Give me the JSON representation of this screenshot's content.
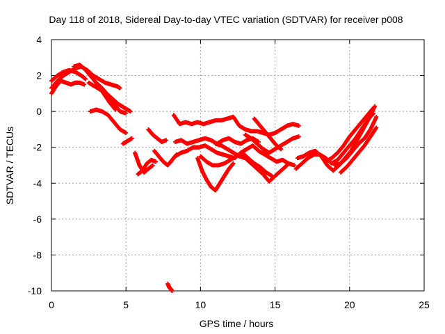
{
  "chart_data": {
    "type": "scatter",
    "title": "Day 118 of 2018, Sidereal Day-to-day VTEC variation (SDTVAR) for receiver p008",
    "xlabel": "GPS time / hours",
    "ylabel": "SDTVAR / TECUs",
    "xlim": [
      0,
      25
    ],
    "ylim": [
      -10,
      4
    ],
    "xticks": [
      0,
      5,
      10,
      15,
      20,
      25
    ],
    "yticks": [
      -10,
      -8,
      -6,
      -4,
      -2,
      0,
      2,
      4
    ],
    "xtick_labels": [
      "0",
      "5",
      "10",
      "15",
      "20",
      "25"
    ],
    "ytick_labels": [
      "-10",
      "-8",
      "-6",
      "-4",
      "-2",
      "0",
      "2",
      "4"
    ],
    "grid": true,
    "marker": "+",
    "color": "#ff0000",
    "series": [
      {
        "x": [
          0.0,
          0.4,
          0.8,
          1.2,
          1.6,
          2.0,
          2.4,
          2.8,
          3.2,
          3.6,
          4.0,
          4.4,
          4.6
        ],
        "y": [
          1.3,
          1.7,
          2.0,
          2.2,
          2.4,
          2.5,
          2.3,
          2.0,
          1.8,
          1.6,
          1.5,
          1.4,
          1.3
        ]
      },
      {
        "x": [
          0.0,
          0.3,
          0.6,
          1.0,
          1.3,
          1.6,
          1.9,
          2.2
        ],
        "y": [
          1.0,
          1.4,
          1.7,
          1.6,
          1.5,
          1.6,
          1.6,
          1.5
        ]
      },
      {
        "x": [
          0.0,
          0.4,
          0.8,
          1.2,
          1.6,
          2.0,
          2.3
        ],
        "y": [
          1.7,
          2.0,
          2.2,
          2.3,
          2.2,
          2.0,
          1.8
        ]
      },
      {
        "x": [
          1.5,
          1.9,
          2.3,
          2.7,
          3.1,
          3.5,
          3.9,
          4.3
        ],
        "y": [
          2.5,
          2.6,
          2.3,
          1.9,
          1.5,
          1.0,
          0.5,
          0.1
        ]
      },
      {
        "x": [
          2.5,
          2.9,
          3.3,
          3.7,
          4.1,
          4.5,
          4.9,
          5.3
        ],
        "y": [
          1.6,
          1.4,
          1.2,
          1.0,
          0.7,
          0.4,
          0.2,
          0.0
        ]
      },
      {
        "x": [
          2.6,
          3.0,
          3.4,
          3.8,
          4.2,
          4.6,
          5.0
        ],
        "y": [
          0.0,
          0.1,
          0.0,
          -0.2,
          -0.6,
          -1.0,
          -1.2
        ]
      },
      {
        "x": [
          3.0,
          3.4,
          3.8,
          4.2,
          4.6,
          5.0
        ],
        "y": [
          1.6,
          1.3,
          0.9,
          0.4,
          0.0,
          -0.1
        ]
      },
      {
        "x": [
          4.8,
          5.0,
          5.2,
          5.4
        ],
        "y": [
          -1.8,
          -1.7,
          -1.6,
          -1.5
        ]
      },
      {
        "x": [
          5.6,
          5.9,
          6.2,
          6.5,
          6.8
        ],
        "y": [
          -2.3,
          -3.0,
          -3.4,
          -3.2,
          -3.0
        ]
      },
      {
        "x": [
          5.8,
          6.1,
          6.4,
          6.7,
          7.0
        ],
        "y": [
          -3.5,
          -3.3,
          -2.9,
          -2.7,
          -2.8
        ]
      },
      {
        "x": [
          6.5,
          6.8,
          7.1,
          7.4,
          7.7
        ],
        "y": [
          -1.0,
          -1.3,
          -1.5,
          -1.7,
          -1.6
        ]
      },
      {
        "x": [
          6.9,
          7.2,
          7.5,
          7.8,
          8.1,
          8.4
        ],
        "y": [
          -2.2,
          -2.5,
          -2.8,
          -3.0,
          -2.7,
          -2.4
        ]
      },
      {
        "x": [
          7.8,
          7.9,
          8.0,
          8.1
        ],
        "y": [
          -9.6,
          -9.8,
          -9.9,
          -10.0
        ]
      },
      {
        "x": [
          8.2,
          8.6,
          9.0,
          9.4,
          9.8,
          10.2,
          10.6,
          11.0,
          11.4,
          11.8,
          12.2,
          12.6,
          13.0,
          13.4,
          13.8,
          14.2,
          14.6,
          15.0,
          15.4,
          15.8,
          16.2,
          16.6
        ],
        "y": [
          -0.2,
          -0.7,
          -0.6,
          -0.7,
          -0.6,
          -0.7,
          -0.6,
          -0.5,
          -0.5,
          -0.4,
          -0.3,
          -0.8,
          -1.0,
          -1.1,
          -1.1,
          -1.2,
          -1.3,
          -1.2,
          -1.0,
          -0.8,
          -0.7,
          -0.8
        ]
      },
      {
        "x": [
          8.3,
          8.7,
          9.1,
          9.5,
          9.9,
          10.3,
          10.7,
          11.1,
          11.5,
          11.9,
          12.3,
          12.7,
          13.1,
          13.5,
          13.9,
          14.3,
          14.7,
          15.1,
          15.5,
          15.9,
          16.3
        ],
        "y": [
          -2.5,
          -2.3,
          -2.2,
          -2.0,
          -2.0,
          -1.9,
          -2.1,
          -2.3,
          -2.4,
          -2.5,
          -2.6,
          -2.3,
          -2.1,
          -1.9,
          -2.2,
          -2.4,
          -2.6,
          -2.8,
          -2.7,
          -2.9,
          -3.0
        ]
      },
      {
        "x": [
          8.3,
          8.7,
          9.1,
          9.5,
          9.9,
          10.3,
          10.7,
          11.1,
          11.5,
          11.9,
          12.3,
          12.7,
          13.1,
          13.5,
          13.9
        ],
        "y": [
          -1.7,
          -1.6,
          -1.8,
          -1.7,
          -1.6,
          -1.5,
          -1.6,
          -1.8,
          -1.6,
          -1.5,
          -1.7,
          -1.8,
          -1.6,
          -1.5,
          -1.7
        ]
      },
      {
        "x": [
          9.8,
          10.1,
          10.4,
          10.7,
          11.0,
          11.3,
          11.6,
          11.9,
          12.2
        ],
        "y": [
          -2.6,
          -3.3,
          -3.8,
          -4.2,
          -4.4,
          -4.0,
          -3.6,
          -3.2,
          -2.9
        ]
      },
      {
        "x": [
          10.0,
          10.4,
          10.8,
          11.2,
          11.6,
          12.0,
          12.4,
          12.8,
          13.2,
          13.6,
          14.0,
          14.4,
          14.8
        ],
        "y": [
          -2.5,
          -2.8,
          -3.0,
          -3.0,
          -2.9,
          -2.7,
          -2.5,
          -2.3,
          -2.6,
          -2.9,
          -3.1,
          -3.4,
          -3.6
        ]
      },
      {
        "x": [
          11.0,
          11.4,
          11.8,
          12.2,
          12.6,
          13.0,
          13.4,
          13.8,
          14.2,
          14.6,
          15.0,
          15.4,
          15.8
        ],
        "y": [
          -1.8,
          -1.9,
          -2.1,
          -2.3,
          -2.5,
          -2.6,
          -2.9,
          -3.2,
          -3.5,
          -3.9,
          -3.6,
          -3.3,
          -3.0
        ]
      },
      {
        "x": [
          13.0,
          13.4,
          13.8,
          14.2,
          14.6,
          15.0,
          15.4,
          15.8,
          16.2,
          16.6
        ],
        "y": [
          -1.3,
          -1.5,
          -1.8,
          -2.1,
          -2.3,
          -2.1,
          -1.9,
          -1.7,
          -1.5,
          -1.4
        ]
      },
      {
        "x": [
          13.6,
          13.9,
          14.2,
          14.5,
          14.8,
          15.1,
          15.4
        ],
        "y": [
          -0.4,
          -0.7,
          -1.0,
          -1.3,
          -1.6,
          -1.9,
          -2.1
        ]
      },
      {
        "x": [
          16.4,
          16.8,
          17.2,
          17.6,
          18.0,
          18.4,
          18.8,
          19.2,
          19.6,
          20.0,
          20.4,
          20.8,
          21.2,
          21.6
        ],
        "y": [
          -3.2,
          -2.9,
          -2.6,
          -2.4,
          -2.4,
          -2.6,
          -2.9,
          -2.7,
          -2.3,
          -1.9,
          -1.5,
          -1.0,
          -0.5,
          -0.1
        ]
      },
      {
        "x": [
          16.5,
          16.9,
          17.3,
          17.7,
          18.1,
          18.5,
          18.9,
          19.3,
          19.7,
          20.1,
          20.5,
          20.9,
          21.3,
          21.7
        ],
        "y": [
          -2.6,
          -2.5,
          -2.3,
          -2.2,
          -2.5,
          -3.0,
          -3.3,
          -3.0,
          -2.6,
          -2.2,
          -1.6,
          -1.0,
          -0.4,
          0.3
        ]
      },
      {
        "x": [
          18.4,
          18.8,
          19.2,
          19.6,
          20.0,
          20.4,
          20.8,
          21.2,
          21.6
        ],
        "y": [
          -2.8,
          -2.6,
          -2.3,
          -1.9,
          -1.4,
          -1.0,
          -0.6,
          -0.2,
          0.2
        ]
      },
      {
        "x": [
          19.4,
          19.8,
          20.2,
          20.6,
          21.0,
          21.4,
          21.8
        ],
        "y": [
          -3.4,
          -3.1,
          -2.7,
          -2.3,
          -1.9,
          -1.4,
          -0.9
        ]
      },
      {
        "x": [
          19.0,
          19.4,
          19.8,
          20.2,
          20.6,
          21.0,
          21.4,
          21.8
        ],
        "y": [
          -3.0,
          -2.9,
          -2.6,
          -2.2,
          -1.8,
          -1.5,
          -1.0,
          -0.3
        ]
      }
    ]
  }
}
